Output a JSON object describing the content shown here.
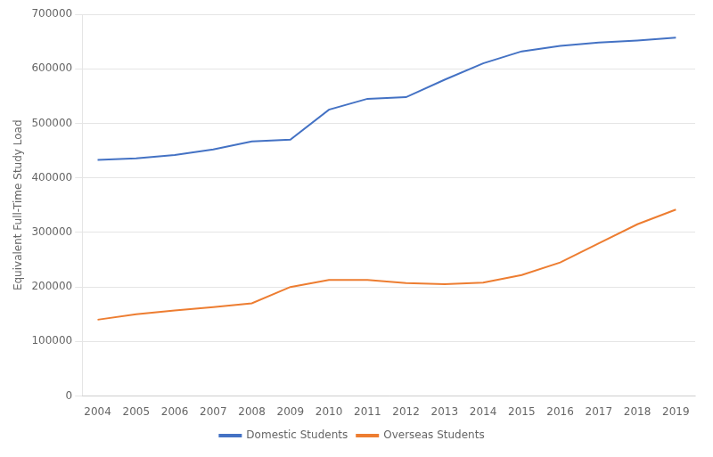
{
  "chart_data": {
    "type": "line",
    "x": [
      2004,
      2005,
      2006,
      2007,
      2008,
      2009,
      2010,
      2011,
      2012,
      2013,
      2014,
      2015,
      2016,
      2017,
      2018,
      2019
    ],
    "series": [
      {
        "name": "Domestic Students",
        "color": "#4472C4",
        "values": [
          433000,
          436000,
          442000,
          452000,
          467000,
          470000,
          525000,
          545000,
          548000,
          580000,
          610000,
          632000,
          642000,
          648000,
          652000,
          657000
        ]
      },
      {
        "name": "Overseas Students",
        "color": "#ED7D31",
        "values": [
          140000,
          150000,
          157000,
          163000,
          170000,
          200000,
          213000,
          213000,
          207000,
          205000,
          208000,
          222000,
          245000,
          280000,
          315000,
          342000
        ]
      }
    ],
    "ylabel": "Equivalent Full-Time Study Load",
    "xlim": [
      2003.6,
      2019.5
    ],
    "xticks": [
      2004,
      2005,
      2006,
      2007,
      2008,
      2009,
      2010,
      2011,
      2012,
      2013,
      2014,
      2015,
      2016,
      2017,
      2018,
      2019
    ],
    "ylim": [
      0,
      700000
    ],
    "yticks": [
      0,
      100000,
      200000,
      300000,
      400000,
      500000,
      600000,
      700000
    ],
    "grid": "y",
    "legend": "bottom",
    "marker": "none"
  }
}
